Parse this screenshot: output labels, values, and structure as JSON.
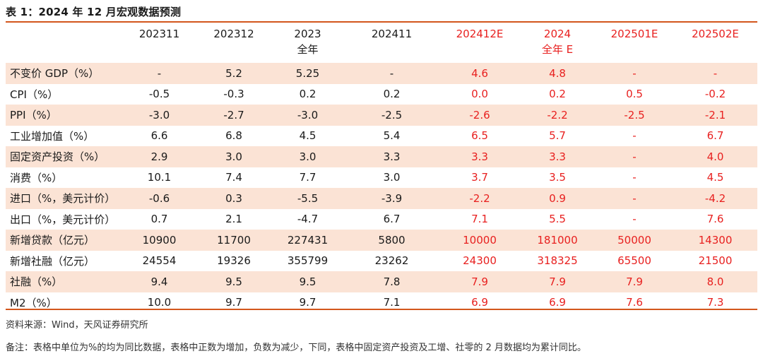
{
  "title": "表 1：2024 年 12 月宏观数据预测",
  "headers": [
    {
      "line1": "",
      "line2": "",
      "red": false
    },
    {
      "line1": "202311",
      "line2": "",
      "red": false
    },
    {
      "line1": "202312",
      "line2": "",
      "red": false
    },
    {
      "line1": "2023",
      "line2": "全年",
      "red": false
    },
    {
      "line1": "202411",
      "line2": "",
      "red": false
    },
    {
      "line1": "202412E",
      "line2": "",
      "red": true
    },
    {
      "line1": "2024",
      "line2": "全年 E",
      "red": true
    },
    {
      "line1": "202501E",
      "line2": "",
      "red": true
    },
    {
      "line1": "202502E",
      "line2": "",
      "red": true
    }
  ],
  "rows": [
    {
      "label": "不变价 GDP（%）",
      "values": [
        "-",
        "5.2",
        "5.25",
        "-",
        "4.6",
        "4.8",
        "-",
        "-"
      ]
    },
    {
      "label": "CPI（%）",
      "values": [
        "-0.5",
        "-0.3",
        "0.2",
        "0.2",
        "0.0",
        "0.2",
        "0.5",
        "-0.2"
      ]
    },
    {
      "label": "PPI（%）",
      "values": [
        "-3.0",
        "-2.7",
        "-3.0",
        "-2.5",
        "-2.6",
        "-2.2",
        "-2.5",
        "-2.1"
      ]
    },
    {
      "label": "工业增加值（%）",
      "values": [
        "6.6",
        "6.8",
        "4.5",
        "5.4",
        "6.5",
        "5.7",
        "-",
        "6.7"
      ]
    },
    {
      "label": "固定资产投资（%）",
      "values": [
        "2.9",
        "3.0",
        "3.0",
        "3.3",
        "3.3",
        "3.3",
        "-",
        "4.0"
      ]
    },
    {
      "label": "消费（%）",
      "values": [
        "10.1",
        "7.4",
        "7.7",
        "3.0",
        "3.7",
        "3.5",
        "-",
        "4.5"
      ]
    },
    {
      "label": "进口（%，美元计价）",
      "values": [
        "-0.6",
        "0.3",
        "-5.5",
        "-3.9",
        "-2.2",
        "0.9",
        "-",
        "-4.2"
      ]
    },
    {
      "label": "出口（%，美元计价）",
      "values": [
        "0.7",
        "2.1",
        "-4.7",
        "6.7",
        "7.1",
        "5.5",
        "-",
        "7.6"
      ]
    },
    {
      "label": "新增贷款（亿元）",
      "values": [
        "10900",
        "11700",
        "227431",
        "5800",
        "10000",
        "181000",
        "50000",
        "14300"
      ]
    },
    {
      "label": "新增社融（亿元）",
      "values": [
        "24554",
        "19326",
        "355799",
        "23262",
        "24300",
        "318325",
        "65500",
        "21500"
      ]
    },
    {
      "label": "社融（%）",
      "values": [
        "9.4",
        "9.5",
        "9.5",
        "7.8",
        "7.9",
        "7.9",
        "7.9",
        "8.0"
      ]
    },
    {
      "label": "M2（%）",
      "values": [
        "10.0",
        "9.7",
        "9.7",
        "7.1",
        "6.9",
        "6.9",
        "7.6",
        "7.3"
      ]
    }
  ],
  "source": "资料来源：Wind，天风证券研究所",
  "note": "备注：表格中单位为%的均为同比数据，表格中正数为增加，负数为减少，下同，表格中固定资产投资及工增、社零的 2 月数据均为累计同比。",
  "colors": {
    "accent_rule": "#d3561c",
    "row_shade": "#fbe3d5",
    "forecast_text": "#e8201f"
  }
}
